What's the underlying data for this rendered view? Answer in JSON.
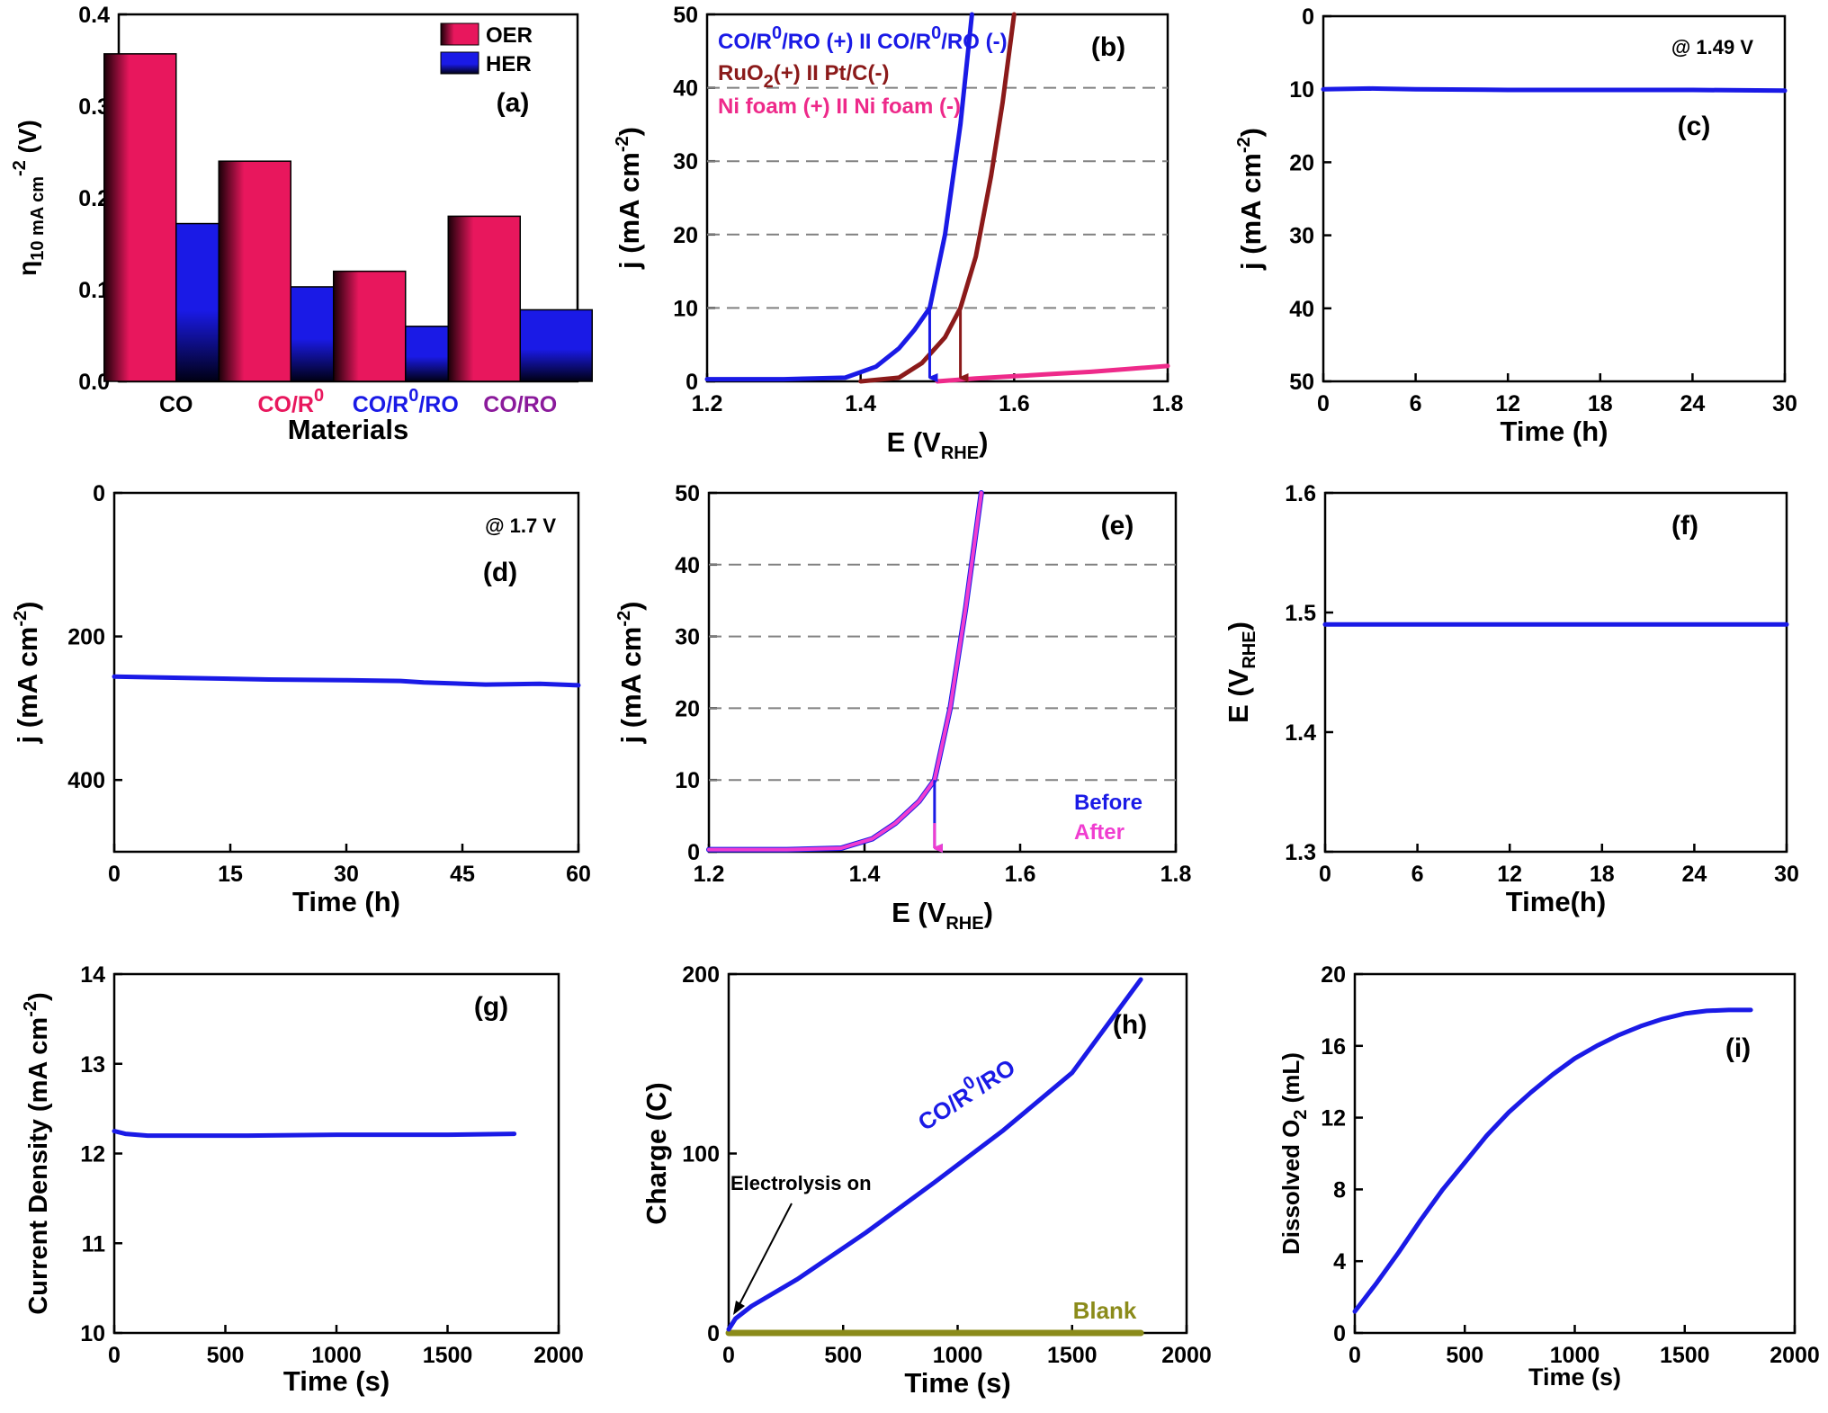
{
  "colors": {
    "blue": "#1a1ae6",
    "darkred": "#8b1a1a",
    "magenta": "#ee2a8a",
    "pink": "#f03dd0",
    "olive": "#8b8b1a",
    "crimson": "#e8175d",
    "purple": "#8b1a9b",
    "black": "#000000"
  },
  "chart_data": [
    {
      "id": "a",
      "type": "bar",
      "panel_label": "(a)",
      "xlabel": "Materials",
      "ylabel": "η",
      "ylabel_sub": "10 mA cm",
      "ylabel_sup": "-2",
      "ylabel_unit": " (V)",
      "ylim": [
        0,
        0.4
      ],
      "yticks": [
        0.0,
        0.1,
        0.2,
        0.3,
        0.4
      ],
      "yticklabels": [
        "0.0",
        "0.1",
        "0.2",
        "0.3",
        "0.4"
      ],
      "categories": [
        "CO",
        "CO/R",
        "CO/R",
        "CO/RO"
      ],
      "category_sup": [
        "",
        "0",
        "0",
        ""
      ],
      "category_tail": [
        "",
        "",
        "/RO",
        ""
      ],
      "category_colors": [
        "#000000",
        "#e8175d",
        "#1a1ae6",
        "#8b1a9b"
      ],
      "legend": [
        "OER",
        "HER"
      ],
      "legend_position": "top-right",
      "series": [
        {
          "name": "OER",
          "values": [
            0.357,
            0.24,
            0.12,
            0.18
          ]
        },
        {
          "name": "HER",
          "values": [
            0.172,
            0.103,
            0.06,
            0.078
          ]
        }
      ]
    },
    {
      "id": "b",
      "type": "line",
      "panel_label": "(b)",
      "xlabel": "E (V",
      "xlabel_sub": "RHE",
      "xlabel_tail": ")",
      "ylabel": "j (mA cm",
      "ylabel_sup": "-2",
      "ylabel_tail": ")",
      "xlim": [
        1.2,
        1.8
      ],
      "ylim": [
        0,
        50
      ],
      "xticks": [
        1.2,
        1.4,
        1.6,
        1.8
      ],
      "xticklabels": [
        "1.2",
        "1.4",
        "1.6",
        "1.8"
      ],
      "yticks": [
        0,
        10,
        20,
        30,
        40,
        50
      ],
      "yticklabels": [
        "0",
        "10",
        "20",
        "30",
        "40",
        "50"
      ],
      "grid_lines_y": [
        10,
        20,
        30,
        40
      ],
      "legend": [
        {
          "pre": "CO/R",
          "sup": "0",
          "mid": "/RO (+) II CO/R",
          "sup2": "0",
          "post": "/RO (-)",
          "color": "#1a1ae6"
        },
        {
          "pre": "RuO",
          "sub": "2",
          "post": "(+) II Pt/C(-)",
          "color": "#8b1a1a"
        },
        {
          "pre": "Ni foam (+) II Ni foam (-)",
          "color": "#ee2a8a"
        }
      ],
      "series": [
        {
          "color": "#1a1ae6",
          "x": [
            1.2,
            1.3,
            1.38,
            1.42,
            1.45,
            1.47,
            1.49,
            1.51,
            1.53,
            1.545
          ],
          "y": [
            0.3,
            0.3,
            0.5,
            2,
            4.5,
            7,
            10,
            20,
            35,
            50
          ]
        },
        {
          "color": "#8b1a1a",
          "x": [
            1.4,
            1.45,
            1.48,
            1.51,
            1.53,
            1.55,
            1.57,
            1.585,
            1.6
          ],
          "y": [
            0,
            0.5,
            2.5,
            6,
            10,
            17,
            28,
            38,
            50
          ]
        },
        {
          "color": "#ee2a8a",
          "x": [
            1.5,
            1.55,
            1.6,
            1.65,
            1.7,
            1.75,
            1.8
          ],
          "y": [
            0,
            0.4,
            0.7,
            1.0,
            1.3,
            1.7,
            2.1
          ]
        }
      ],
      "arrows": [
        {
          "x": 1.49,
          "y_from": 10,
          "y_to": 0,
          "color": "#1a1ae6"
        },
        {
          "x": 1.53,
          "y_from": 10,
          "y_to": 0,
          "color": "#8b1a1a"
        }
      ]
    },
    {
      "id": "c",
      "type": "line",
      "panel_label": "(c)",
      "annotation": "@ 1.49 V",
      "xlabel": "Time (h)",
      "ylabel": "j (mA cm",
      "ylabel_sup": "-2",
      "ylabel_tail": ")",
      "xlim": [
        0,
        30
      ],
      "ylim": [
        0,
        50
      ],
      "y_inverted": true,
      "xticks": [
        0,
        6,
        12,
        18,
        24,
        30
      ],
      "xticklabels": [
        "0",
        "6",
        "12",
        "18",
        "24",
        "30"
      ],
      "yticks": [
        0,
        10,
        20,
        30,
        40,
        50
      ],
      "yticklabels": [
        "0",
        "10",
        "20",
        "30",
        "40",
        "50"
      ],
      "series": [
        {
          "color": "#1a1ae6",
          "x": [
            0,
            3,
            6,
            12,
            18,
            24,
            30
          ],
          "y": [
            10,
            9.9,
            10.0,
            10.1,
            10.1,
            10.1,
            10.2
          ]
        }
      ]
    },
    {
      "id": "d",
      "type": "line",
      "panel_label": "(d)",
      "annotation": "@ 1.7 V",
      "xlabel": "Time (h)",
      "ylabel": "j (mA cm",
      "ylabel_sup": "-2",
      "ylabel_tail": ")",
      "xlim": [
        0,
        60
      ],
      "ylim": [
        0,
        500
      ],
      "y_inverted": true,
      "xticks": [
        0,
        15,
        30,
        45,
        60
      ],
      "xticklabels": [
        "0",
        "15",
        "30",
        "45",
        "60"
      ],
      "yticks": [
        0,
        200,
        400
      ],
      "yticklabels": [
        "0",
        "200",
        "400"
      ],
      "series": [
        {
          "color": "#1a1ae6",
          "x": [
            0,
            10,
            20,
            30,
            37,
            40,
            48,
            55,
            60
          ],
          "y": [
            256,
            258,
            260,
            261,
            262,
            264,
            267,
            266,
            268
          ]
        }
      ]
    },
    {
      "id": "e",
      "type": "line",
      "panel_label": "(e)",
      "xlabel": "E (V",
      "xlabel_sub": "RHE",
      "xlabel_tail": ")",
      "ylabel": "j (mA cm",
      "ylabel_sup": "-2",
      "ylabel_tail": ")",
      "xlim": [
        1.2,
        1.8
      ],
      "ylim": [
        0,
        50
      ],
      "xticks": [
        1.2,
        1.4,
        1.6,
        1.8
      ],
      "xticklabels": [
        "1.2",
        "1.4",
        "1.6",
        "1.8"
      ],
      "yticks": [
        0,
        10,
        20,
        30,
        40,
        50
      ],
      "yticklabels": [
        "0",
        "10",
        "20",
        "30",
        "40",
        "50"
      ],
      "grid_lines_y": [
        10,
        20,
        30,
        40
      ],
      "legend": [
        {
          "pre": "Before",
          "color": "#1a1ae6"
        },
        {
          "pre": "After",
          "color": "#f03dd0"
        }
      ],
      "legend_position": "bottom-right",
      "series": [
        {
          "name": "Before",
          "color": "#1a1ae6",
          "x": [
            1.2,
            1.3,
            1.37,
            1.41,
            1.44,
            1.47,
            1.49,
            1.51,
            1.53,
            1.55
          ],
          "y": [
            0.3,
            0.3,
            0.5,
            1.8,
            4,
            7,
            10,
            20,
            34,
            50
          ]
        },
        {
          "name": "After",
          "color": "#f03dd0",
          "x": [
            1.2,
            1.3,
            1.37,
            1.41,
            1.44,
            1.47,
            1.49,
            1.51,
            1.53,
            1.55
          ],
          "y": [
            0.3,
            0.3,
            0.5,
            1.8,
            4,
            7,
            10,
            20,
            34,
            50
          ]
        }
      ],
      "arrows": [
        {
          "x": 1.49,
          "y_from": 10,
          "y_to": 0,
          "color": "#1a1ae6"
        },
        {
          "x": 1.49,
          "y_from": 4,
          "y_to": 0,
          "color": "#f03dd0"
        }
      ]
    },
    {
      "id": "f",
      "type": "line",
      "panel_label": "(f)",
      "xlabel": "Time(h)",
      "ylabel": "E (V",
      "ylabel_sub": "RHE",
      "ylabel_tail": ")",
      "xlim": [
        0,
        30
      ],
      "ylim": [
        1.3,
        1.6
      ],
      "xticks": [
        0,
        6,
        12,
        18,
        24,
        30
      ],
      "xticklabels": [
        "0",
        "6",
        "12",
        "18",
        "24",
        "30"
      ],
      "yticks": [
        1.3,
        1.4,
        1.5,
        1.6
      ],
      "yticklabels": [
        "1.3",
        "1.4",
        "1.5",
        "1.6"
      ],
      "series": [
        {
          "color": "#1a1ae6",
          "x": [
            0,
            30
          ],
          "y": [
            1.49,
            1.49
          ]
        }
      ]
    },
    {
      "id": "g",
      "type": "line",
      "panel_label": "(g)",
      "xlabel": "Time (s)",
      "ylabel": "Current Density (mA cm",
      "ylabel_sup": "-2",
      "ylabel_tail": ")",
      "xlim": [
        0,
        2000
      ],
      "ylim": [
        10,
        14
      ],
      "xticks": [
        0,
        500,
        1000,
        1500,
        2000
      ],
      "xticklabels": [
        "0",
        "500",
        "1000",
        "1500",
        "2000"
      ],
      "yticks": [
        10,
        11,
        12,
        13,
        14
      ],
      "yticklabels": [
        "10",
        "11",
        "12",
        "13",
        "14"
      ],
      "series": [
        {
          "color": "#1a1ae6",
          "x": [
            0,
            50,
            150,
            300,
            600,
            1000,
            1500,
            1800
          ],
          "y": [
            12.25,
            12.22,
            12.2,
            12.2,
            12.2,
            12.21,
            12.21,
            12.22
          ]
        }
      ]
    },
    {
      "id": "h",
      "type": "line",
      "panel_label": "(h)",
      "xlabel": "Time (s)",
      "ylabel": "Charge (C)",
      "xlim": [
        0,
        2000
      ],
      "ylim": [
        0,
        200
      ],
      "xticks": [
        0,
        500,
        1000,
        1500,
        2000
      ],
      "xticklabels": [
        "0",
        "500",
        "1000",
        "1500",
        "2000"
      ],
      "yticks": [
        0,
        100,
        200
      ],
      "yticklabels": [
        "0",
        "100",
        "200"
      ],
      "curve_label": {
        "pre": "CO/R",
        "sup": "0",
        "post": "/RO",
        "color": "#1a1ae6"
      },
      "annotation": "Electrolysis on",
      "blank_label": "Blank",
      "series": [
        {
          "name": "CO/R0/RO",
          "color": "#1a1ae6",
          "x": [
            0,
            30,
            100,
            300,
            600,
            900,
            1200,
            1500,
            1800
          ],
          "y": [
            2,
            8,
            15,
            30,
            56,
            84,
            113,
            145,
            197
          ]
        },
        {
          "name": "Blank",
          "color": "#8b8b1a",
          "x": [
            0,
            1800
          ],
          "y": [
            0,
            0
          ]
        }
      ]
    },
    {
      "id": "i",
      "type": "line",
      "panel_label": "(i)",
      "xlabel": "Time (s)",
      "ylabel": "Dissolved O",
      "ylabel_sub": "2",
      "ylabel_tail": " (mL)",
      "xlim": [
        0,
        2000
      ],
      "ylim": [
        0,
        20
      ],
      "xticks": [
        0,
        500,
        1000,
        1500,
        2000
      ],
      "xticklabels": [
        "0",
        "500",
        "1000",
        "1500",
        "2000"
      ],
      "yticks": [
        0,
        4,
        8,
        12,
        16,
        20
      ],
      "yticklabels": [
        "0",
        "4",
        "8",
        "12",
        "16",
        "20"
      ],
      "series": [
        {
          "color": "#1a1ae6",
          "x": [
            0,
            100,
            200,
            300,
            400,
            500,
            600,
            700,
            800,
            900,
            1000,
            1100,
            1200,
            1300,
            1400,
            1500,
            1600,
            1700,
            1800
          ],
          "y": [
            1.2,
            2.8,
            4.5,
            6.3,
            8.0,
            9.5,
            11.0,
            12.3,
            13.4,
            14.4,
            15.3,
            16.0,
            16.6,
            17.1,
            17.5,
            17.8,
            17.95,
            18.0,
            18.0
          ]
        }
      ]
    }
  ]
}
